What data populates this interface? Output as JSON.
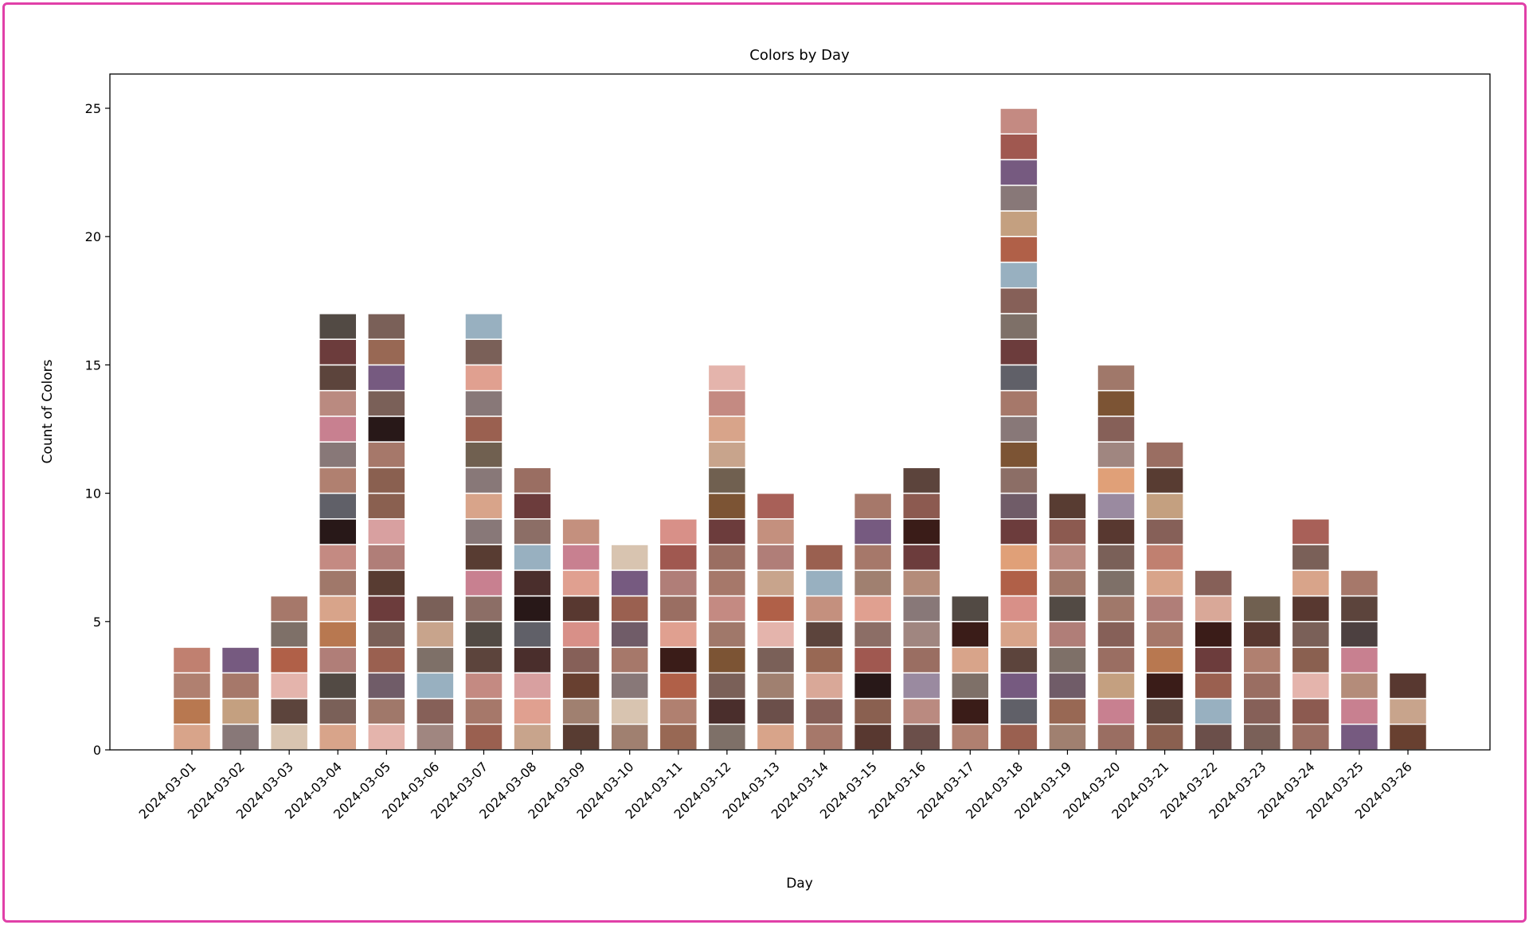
{
  "chart_data": {
    "type": "bar",
    "title": "Colors by Day",
    "xlabel": "Day",
    "ylabel": "Count of Colors",
    "ylim": [
      0,
      26.2
    ],
    "yticks": [
      0,
      5,
      10,
      15,
      20,
      25
    ],
    "categories": [
      "2024-03-01",
      "2024-03-02",
      "2024-03-03",
      "2024-03-04",
      "2024-03-05",
      "2024-03-06",
      "2024-03-07",
      "2024-03-08",
      "2024-03-09",
      "2024-03-10",
      "2024-03-11",
      "2024-03-12",
      "2024-03-13",
      "2024-03-14",
      "2024-03-15",
      "2024-03-16",
      "2024-03-17",
      "2024-03-18",
      "2024-03-19",
      "2024-03-20",
      "2024-03-21",
      "2024-03-22",
      "2024-03-23",
      "2024-03-24",
      "2024-03-25",
      "2024-03-26"
    ],
    "values": [
      4,
      4,
      6,
      17,
      17,
      6,
      17,
      11,
      9,
      8,
      9,
      15,
      10,
      8,
      10,
      11,
      6,
      25,
      10,
      15,
      12,
      7,
      6,
      9,
      7,
      3
    ],
    "stacked_unit_blocks": true,
    "block_palette": [
      "#c4907e",
      "#9a6e62",
      "#c48a82",
      "#6b4f4a",
      "#a6786a",
      "#d9a898",
      "#b08070",
      "#c8a48c",
      "#b07e78",
      "#a0786a",
      "#ba8a80",
      "#684030",
      "#7a6058",
      "#c08070",
      "#e0a090",
      "#e4b4ac",
      "#9a8aa0",
      "#583c32",
      "#8a6050",
      "#a08070",
      "#b48c7a",
      "#866058",
      "#5c443c",
      "#887878",
      "#9a6050",
      "#986854",
      "#d8a48a",
      "#c4a080",
      "#8c5a50",
      "#6c3c3c",
      "#b87850",
      "#d8c4b0",
      "#a08680",
      "#a86058",
      "#8c6e66",
      "#7e7068",
      "#524a44",
      "#d89088",
      "#a05850",
      "#583830",
      "#98b0c0",
      "#d8a0a0",
      "#b06048",
      "#4c4040",
      "#7c5434",
      "#706050",
      "#4a2e2c",
      "#765a80",
      "#3a1c18",
      "#e0a078",
      "#281818",
      "#c88090",
      "#606068",
      "#705c68"
    ],
    "border_color": "#e040a8"
  }
}
